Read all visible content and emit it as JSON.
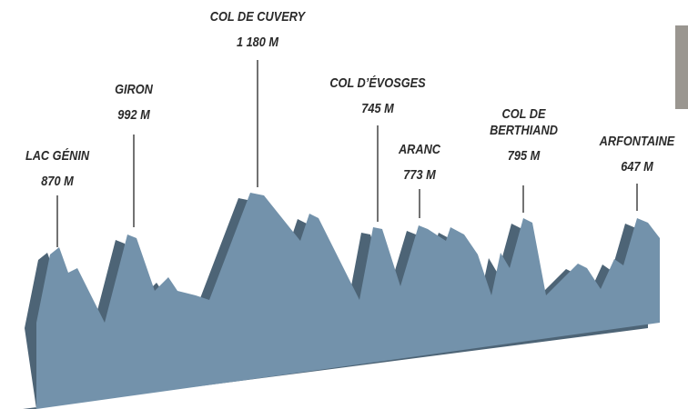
{
  "peaks": [
    {
      "name": "LAC GÉNIN",
      "altitude": "870 M"
    },
    {
      "name": "GIRON",
      "altitude": "992 M"
    },
    {
      "name": "COL DE CUVERY",
      "altitude": "1 180 M"
    },
    {
      "name": "COL D’ÉVOSGES",
      "altitude": "745 M"
    },
    {
      "name": "ARANC",
      "altitude": "773 M"
    },
    {
      "name": "COL DE BERTHIAND",
      "altitude": "795 M"
    },
    {
      "name": "ARFONTAINE",
      "altitude": "647 M"
    }
  ]
}
